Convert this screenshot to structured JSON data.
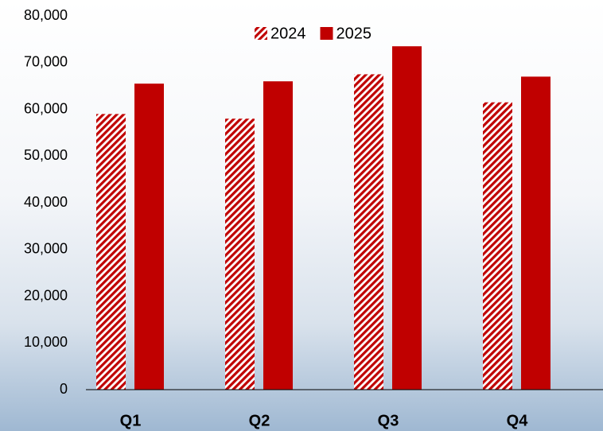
{
  "chart_data": {
    "type": "bar",
    "categories": [
      "Q1",
      "Q2",
      "Q3",
      "Q4"
    ],
    "series": [
      {
        "name": "2024",
        "color": "#c00000",
        "hatch": true,
        "values": [
          59000,
          58000,
          67500,
          61500
        ]
      },
      {
        "name": "2025",
        "color": "#c00000",
        "hatch": false,
        "values": [
          65500,
          66000,
          73500,
          67000
        ]
      }
    ],
    "ylim": [
      0,
      80000
    ],
    "yticks": [
      0,
      {
        "value": 10000,
        "label": "10,000"
      },
      {
        "value": 20000,
        "label": "20,000"
      },
      {
        "value": 30000,
        "label": "30,000"
      },
      {
        "value": 40000,
        "label": "40,000"
      },
      {
        "value": 50000,
        "label": "50,000"
      },
      {
        "value": 60000,
        "label": "60,000"
      },
      {
        "value": 70000,
        "label": "70,000"
      },
      {
        "value": 80000,
        "label": "80,000"
      }
    ],
    "grid": false,
    "legend": "top"
  }
}
